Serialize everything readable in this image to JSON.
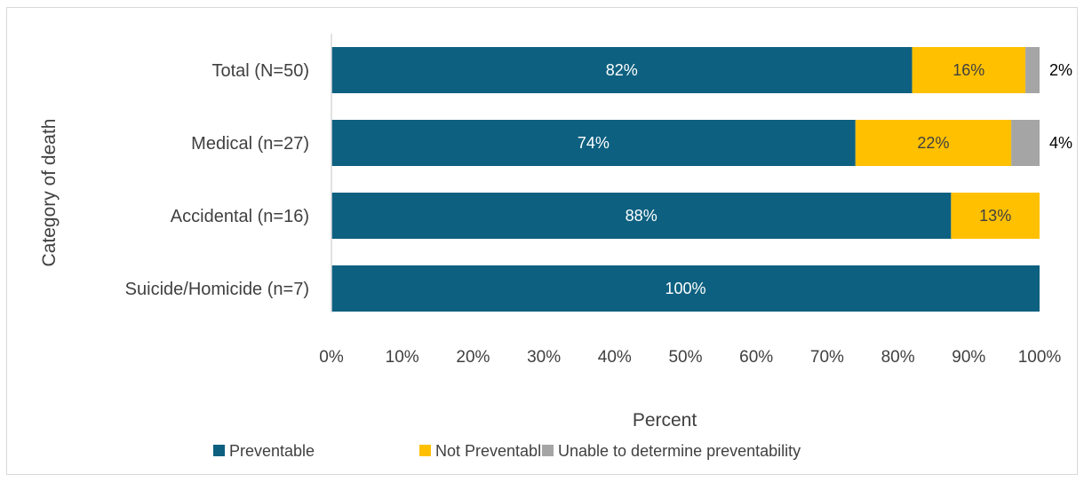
{
  "chart_data": {
    "type": "bar",
    "orientation": "horizontal",
    "stacked": true,
    "categories": [
      "Total (N=50)",
      "Medical (n=27)",
      "Accidental (n=16)",
      "Suicide/Homicide (n=7)"
    ],
    "series": [
      {
        "name": "Preventable",
        "color": "#0d6080",
        "label_color": "#ffffff",
        "values": [
          82,
          74,
          87.5,
          100
        ],
        "labels": [
          "82%",
          "74%",
          "88%",
          "100%"
        ]
      },
      {
        "name": "Not Preventable",
        "color": "#ffc000",
        "label_color": "#404040",
        "values": [
          16,
          22,
          12.5,
          0
        ],
        "labels": [
          "16%",
          "22%",
          "13%",
          ""
        ]
      },
      {
        "name": "Unable to determine preventability",
        "color": "#a5a5a5",
        "label_color": "#000000",
        "values": [
          2,
          4,
          0,
          0
        ],
        "labels": [
          "2%",
          "4%",
          "",
          ""
        ]
      }
    ],
    "xlabel": "Percent",
    "ylabel": "Category of death",
    "xlim": [
      0,
      100
    ],
    "xticks": [
      "0%",
      "10%",
      "20%",
      "30%",
      "40%",
      "50%",
      "60%",
      "70%",
      "80%",
      "90%",
      "100%"
    ],
    "grid": false,
    "legend_position": "bottom"
  }
}
